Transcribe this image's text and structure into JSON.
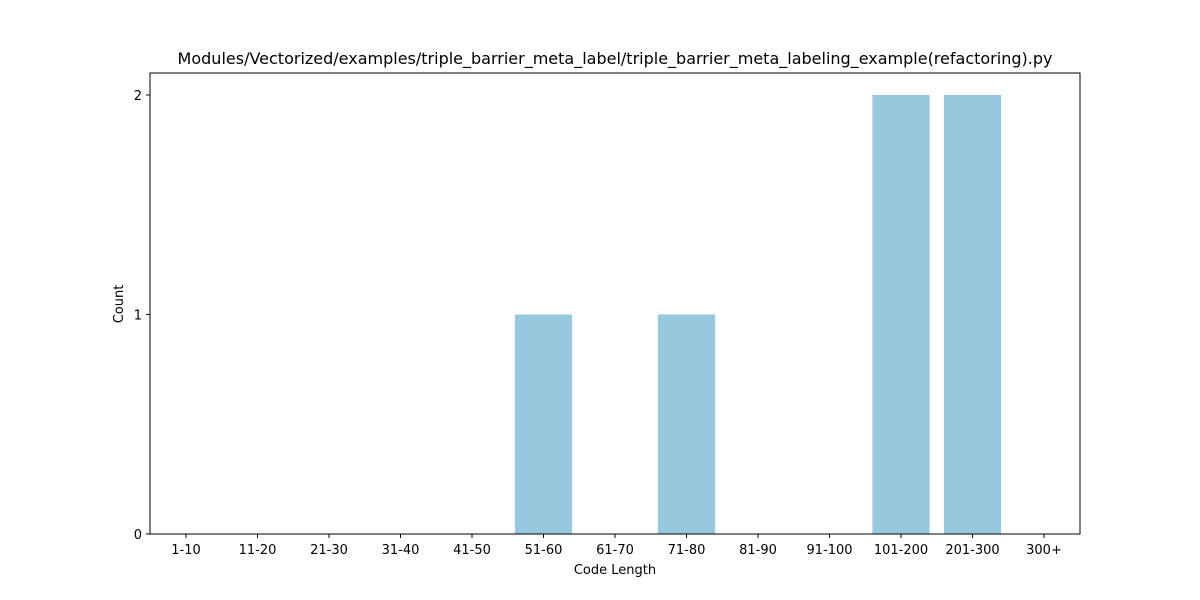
{
  "chart_data": {
    "type": "bar",
    "title": "Modules/Vectorized/examples/triple_barrier_meta_label/triple_barrier_meta_labeling_example(refactoring).py",
    "xlabel": "Code Length",
    "ylabel": "Count",
    "categories": [
      "1-10",
      "11-20",
      "21-30",
      "31-40",
      "41-50",
      "51-60",
      "61-70",
      "71-80",
      "81-90",
      "91-100",
      "101-200",
      "201-300",
      "300+"
    ],
    "values": [
      0,
      0,
      0,
      0,
      0,
      1,
      0,
      1,
      0,
      0,
      2,
      2,
      0
    ],
    "ylim": [
      0,
      2.1
    ],
    "yticks": [
      0,
      1,
      2
    ],
    "bar_color": "#96c9dd",
    "grid": false,
    "legend": "none"
  }
}
